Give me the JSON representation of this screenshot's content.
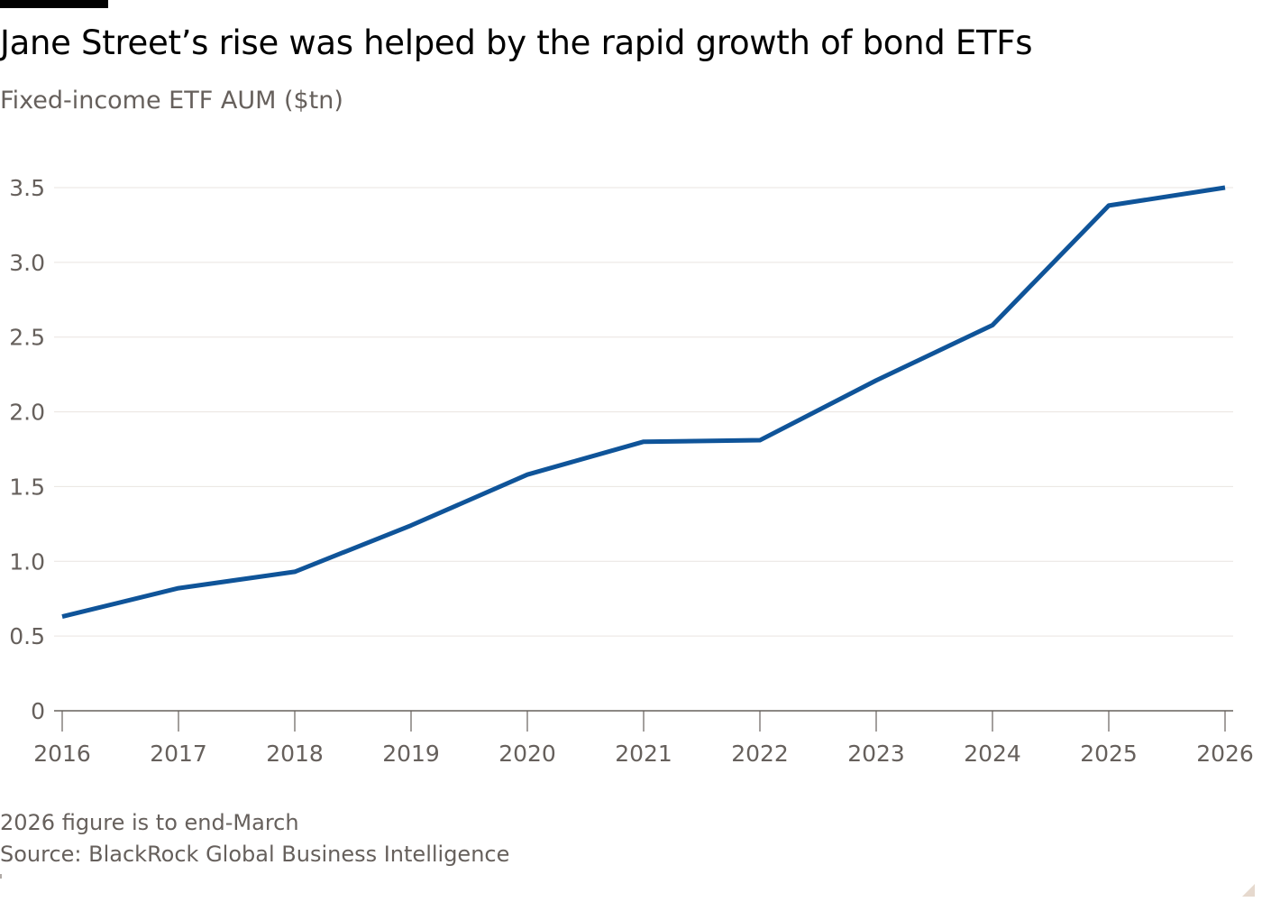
{
  "header": {
    "title": "Jane Street’s rise was helped by the rapid growth of bond ETFs",
    "subtitle": "Fixed-income ETF AUM ($tn)"
  },
  "footer": {
    "note": "2026 figure is to end-March",
    "source": "Source: BlackRock Global Business Intelligence"
  },
  "chart_data": {
    "type": "line",
    "title": "Jane Street’s rise was helped by the rapid growth of bond ETFs",
    "subtitle": "Fixed-income ETF AUM ($tn)",
    "xlabel": "",
    "ylabel": "",
    "x": [
      2016,
      2017,
      2018,
      2019,
      2020,
      2021,
      2022,
      2023,
      2024,
      2025,
      2026
    ],
    "x_ticks": [
      "2016",
      "2017",
      "2018",
      "2019",
      "2020",
      "2021",
      "2022",
      "2023",
      "2024",
      "2025",
      "2026"
    ],
    "y_ticks": [
      0,
      0.5,
      1.0,
      1.5,
      2.0,
      2.5,
      3.0,
      3.5
    ],
    "y_tick_labels": [
      "0",
      "0.5",
      "1.0",
      "1.5",
      "2.0",
      "2.5",
      "3.0",
      "3.5"
    ],
    "xlim": [
      2016,
      2026
    ],
    "ylim": [
      0,
      3.5
    ],
    "grid": "horizontal",
    "series": [
      {
        "values": [
          0.63,
          0.82,
          0.93,
          1.24,
          1.58,
          1.8,
          1.81,
          2.21,
          2.58,
          3.38,
          3.5
        ],
        "color": "#0f5499"
      }
    ],
    "colors": {
      "line": "#0f5499",
      "grid": "#e9e4e0",
      "axis": "#66605c",
      "tick_text": "#66605c"
    }
  }
}
